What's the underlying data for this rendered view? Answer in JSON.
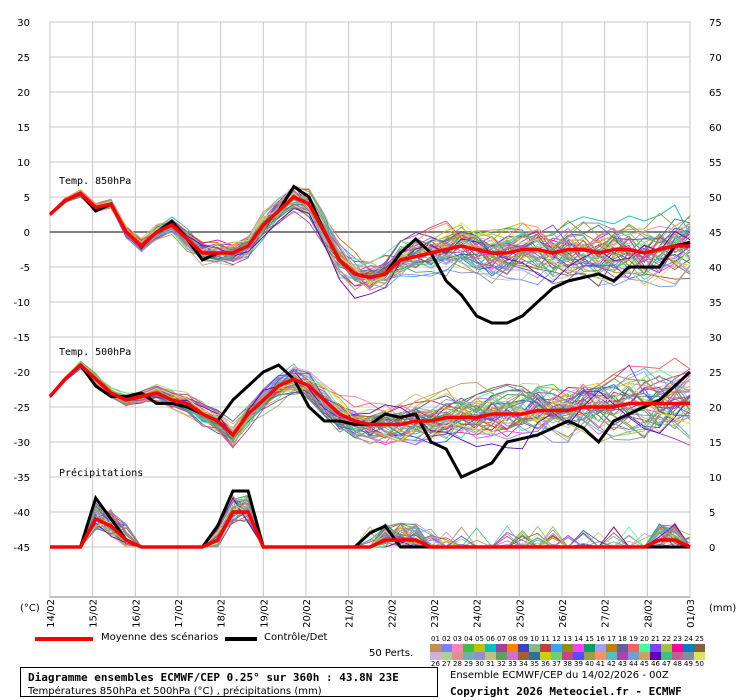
{
  "chart_data": {
    "type": "line",
    "title": "Diagramme ensembles ECMWF/CEP 0.25° sur 360h : 43.8N 23E",
    "subtitle": "Températures 850hPa et 500hPa (°C) , précipitations (mm)",
    "xlabel": "",
    "left_unit": "(°C)",
    "right_unit": "(mm)",
    "left_ticks": [
      "30",
      "25",
      "20",
      "15",
      "10",
      "5",
      "0",
      "-5",
      "-10",
      "-15",
      "-20",
      "-25",
      "-30",
      "-35",
      "-40",
      "-45"
    ],
    "right_ticks": [
      "75",
      "70",
      "65",
      "60",
      "55",
      "50",
      "45",
      "40",
      "35",
      "30",
      "25",
      "20",
      "15",
      "10",
      "5",
      "0"
    ],
    "x_ticks": [
      "14/02",
      "15/02",
      "16/02",
      "17/02",
      "18/02",
      "19/02",
      "20/02",
      "21/02",
      "22/02",
      "23/02",
      "24/02",
      "25/02",
      "26/02",
      "27/02",
      "28/02",
      "01/03"
    ],
    "ylim": [
      -45,
      30
    ],
    "grid": true,
    "panel_labels": {
      "t850": "Temp. 850hPa",
      "t500": "Temp. 500hPa",
      "precip": "Précipitations"
    },
    "series": [
      {
        "name": "Moyenne des scénarios",
        "color": "#ff0000",
        "t850": [
          2.5,
          4.5,
          5.5,
          3.5,
          4,
          0,
          -2,
          0,
          1,
          -1,
          -3,
          -3,
          -3,
          -2,
          1,
          3,
          5,
          4,
          0,
          -4,
          -6,
          -6.5,
          -6,
          -4,
          -3.5,
          -3,
          -2.5,
          -2,
          -2.5,
          -3,
          -3,
          -2.5,
          -2.5,
          -3,
          -2.5,
          -2.5,
          -3,
          -2.5,
          -2.5,
          -3,
          -2.5,
          -2,
          -2
        ],
        "t500": [
          -23.5,
          -21,
          -19,
          -21,
          -23,
          -24,
          -23.5,
          -23,
          -24,
          -24.5,
          -26,
          -27,
          -29,
          -26,
          -24,
          -22,
          -21,
          -22,
          -24,
          -26,
          -27,
          -27.5,
          -27.5,
          -27.5,
          -27,
          -27,
          -26.5,
          -26.5,
          -26.5,
          -26,
          -26,
          -26,
          -25.5,
          -25.5,
          -25.5,
          -25,
          -25,
          -25,
          -24.5,
          -24.5,
          -24.5,
          -24.5,
          -24.5
        ],
        "precip_mm": [
          0,
          0,
          0,
          4,
          3,
          1,
          0,
          0,
          0,
          0,
          0,
          1,
          5,
          5,
          0,
          0,
          0,
          0,
          0,
          0,
          0,
          0,
          1,
          1,
          1,
          0,
          0,
          0,
          0,
          0,
          0,
          0,
          0,
          0,
          0,
          0,
          0,
          0,
          0,
          0,
          1,
          1,
          0
        ]
      },
      {
        "name": "Contrôle/Det",
        "color": "#000000",
        "t850": [
          2.5,
          4.5,
          5.5,
          3,
          4,
          0,
          -2,
          0,
          1.5,
          -1,
          -4,
          -3,
          -3,
          -2,
          1,
          3,
          6.5,
          5,
          0,
          -4,
          -6,
          -6.5,
          -6,
          -3,
          -1,
          -3,
          -7,
          -9,
          -12,
          -13,
          -13,
          -12,
          -10,
          -8,
          -7,
          -6.5,
          -6,
          -7,
          -5,
          -5,
          -5,
          -2,
          -1.5
        ],
        "t500": [
          -23.5,
          -21,
          -19,
          -22,
          -23.5,
          -23.5,
          -23,
          -24.5,
          -24.5,
          -25,
          -26,
          -27,
          -24,
          -22,
          -20,
          -19,
          -21,
          -25,
          -27,
          -27,
          -27.5,
          -27.5,
          -26,
          -26.5,
          -26,
          -30,
          -31,
          -35,
          -34,
          -33,
          -30,
          -29.5,
          -29,
          -28,
          -27,
          -28,
          -30,
          -27,
          -26,
          -25,
          -24,
          -22,
          -20
        ],
        "precip_mm": [
          0,
          0,
          0,
          7,
          4,
          1,
          0,
          0,
          0,
          0,
          0,
          3,
          8,
          8,
          0,
          0,
          0,
          0,
          0,
          0,
          0,
          2,
          3,
          0,
          0,
          0,
          0,
          0,
          0,
          0,
          0,
          0,
          0,
          0,
          0,
          0,
          0,
          0,
          0,
          0,
          0,
          0,
          0
        ]
      }
    ]
  },
  "legend": {
    "mean_label": "Moyenne des scénarios",
    "control_label": "Contrôle/Det",
    "perts_label": "50 Perts.",
    "pert_numbers_top": [
      "01",
      "02",
      "03",
      "04",
      "05",
      "06",
      "07",
      "08",
      "09",
      "10",
      "11",
      "12",
      "13",
      "14",
      "15",
      "16",
      "17",
      "18",
      "19",
      "20",
      "21",
      "22",
      "23",
      "24",
      "25"
    ],
    "pert_numbers_bottom": [
      "26",
      "27",
      "28",
      "29",
      "30",
      "31",
      "32",
      "33",
      "34",
      "35",
      "36",
      "37",
      "38",
      "39",
      "40",
      "41",
      "42",
      "43",
      "44",
      "45",
      "46",
      "47",
      "48",
      "49",
      "50"
    ]
  },
  "footer": {
    "line1": "Diagramme ensembles ECMWF/CEP 0.25° sur 360h : 43.8N 23E",
    "line2": "Températures 850hPa et 500hPa (°C) , précipitations (mm)",
    "right1": "Ensemble ECMWF/CEP du 14/02/2026 - 00Z",
    "right2": "Copyright 2026 Meteociel.fr - ECMWF"
  }
}
